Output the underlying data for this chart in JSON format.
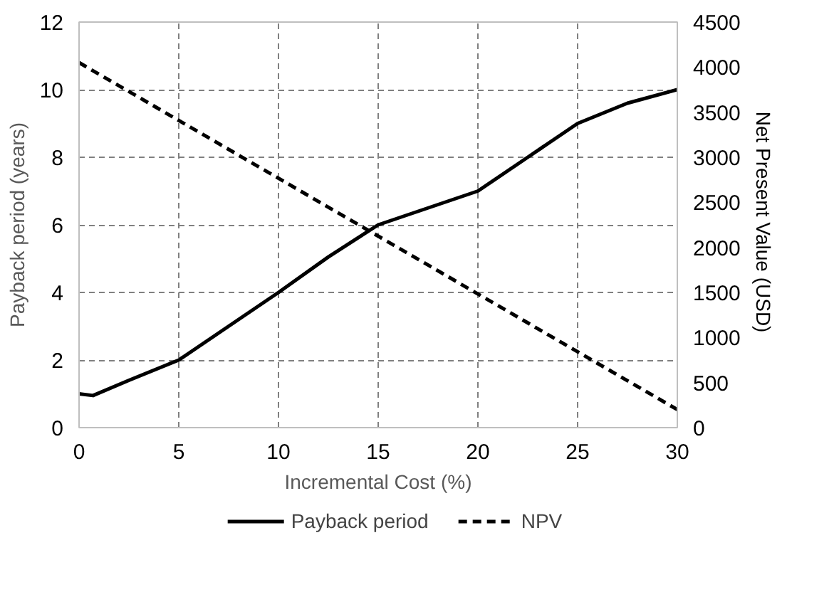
{
  "chart_data": {
    "type": "line",
    "xlabel": "Incremental Cost (%)",
    "ylabel": "Payback period (years)",
    "y2label": "Net Present  Value (USD)",
    "xlim": [
      0,
      30
    ],
    "xticks": [
      0,
      5,
      10,
      15,
      20,
      25,
      30
    ],
    "ylim": [
      0,
      12
    ],
    "yticks": [
      0,
      2,
      4,
      6,
      8,
      10,
      12
    ],
    "y2lim": [
      0,
      4500
    ],
    "y2ticks": [
      0,
      500,
      1000,
      1500,
      2000,
      2500,
      3000,
      3500,
      4000,
      4500
    ],
    "grid": true,
    "legend": "bottom",
    "marker": "none",
    "series": [
      {
        "name": "Payback period",
        "color": "#000000",
        "line_style": "solid",
        "x": [
          0,
          0.7,
          2.5,
          5,
          7.5,
          10,
          12.5,
          15,
          17.5,
          20,
          22.5,
          25,
          27.5,
          30
        ],
        "values": [
          1,
          0.95,
          1.4,
          2,
          3,
          4,
          5.05,
          6,
          6.5,
          7,
          8,
          9,
          9.6,
          10
        ]
      },
      {
        "name": "NPV",
        "color": "#000000",
        "line_style": "dashed",
        "axis": "y2",
        "x": [
          0,
          30
        ],
        "values": [
          4050,
          200
        ]
      }
    ]
  }
}
